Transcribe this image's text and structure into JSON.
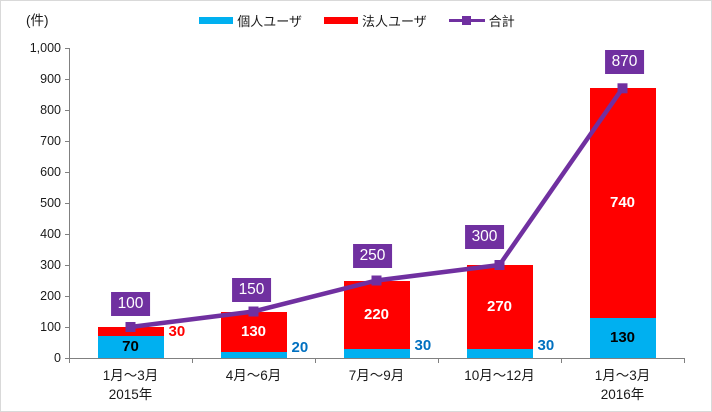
{
  "chart": {
    "unit_label": "(件)"
  },
  "legend": [
    {
      "label": "個人ユーザ",
      "type": "bar",
      "color": "#00B0F0"
    },
    {
      "label": "法人ユーザ",
      "type": "bar",
      "color": "#FF0000"
    },
    {
      "label": "合計",
      "type": "line",
      "color": "#7030A0"
    }
  ],
  "chart_data": {
    "type": "bar",
    "subtype": "stacked-column-with-line",
    "title": "",
    "categories": [
      "1月〜3月",
      "4月〜6月",
      "7月〜9月",
      "10月〜12月",
      "1月〜3月"
    ],
    "category_year_labels": [
      "2015年",
      "",
      "",
      "",
      "2016年"
    ],
    "series": [
      {
        "name": "個人ユーザ",
        "chart_type": "bar",
        "color": "#00B0F0",
        "values": [
          70,
          20,
          30,
          30,
          130
        ],
        "inside_label_color": "#000000",
        "outside_label_color": "#0070C0"
      },
      {
        "name": "法人ユーザ",
        "chart_type": "bar",
        "color": "#FF0000",
        "values": [
          30,
          130,
          220,
          270,
          740
        ],
        "inside_label_color": "#FFFFFF",
        "outside_label_color": "#FF0000"
      },
      {
        "name": "合計",
        "chart_type": "line",
        "color": "#7030A0",
        "values": [
          100,
          150,
          250,
          300,
          870
        ],
        "label_bg_color": "#7030A0",
        "label_text_color": "#FFFFFF"
      }
    ],
    "stacked": true,
    "xlabel": "",
    "ylabel": "(件)",
    "ylim": [
      0,
      1000
    ],
    "y_tick_labels": [
      "0",
      "100",
      "200",
      "300",
      "400",
      "500",
      "600",
      "700",
      "800",
      "900",
      "1,000"
    ],
    "y_tick_values": [
      0,
      100,
      200,
      300,
      400,
      500,
      600,
      700,
      800,
      900,
      1000
    ],
    "grid": false,
    "legend_position": "top"
  }
}
